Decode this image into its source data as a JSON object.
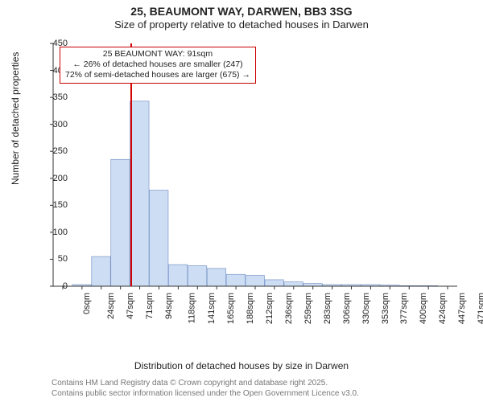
{
  "title": {
    "main": "25, BEAUMONT WAY, DARWEN, BB3 3SG",
    "sub": "Size of property relative to detached houses in Darwen"
  },
  "chart": {
    "type": "histogram",
    "y_label": "Number of detached properties",
    "x_label": "Distribution of detached houses by size in Darwen",
    "y_min": 0,
    "y_max": 450,
    "y_tick_step": 50,
    "x_tick_labels": [
      "0sqm",
      "24sqm",
      "47sqm",
      "71sqm",
      "94sqm",
      "118sqm",
      "141sqm",
      "165sqm",
      "188sqm",
      "212sqm",
      "236sqm",
      "259sqm",
      "283sqm",
      "306sqm",
      "330sqm",
      "353sqm",
      "377sqm",
      "400sqm",
      "424sqm",
      "447sqm",
      "471sqm"
    ],
    "bar_values": [
      0,
      3,
      55,
      235,
      343,
      178,
      40,
      38,
      33,
      22,
      20,
      12,
      8,
      5,
      3,
      3,
      3,
      2,
      1,
      1,
      0
    ],
    "bar_fill": "#cdddf3",
    "bar_stroke": "#7a97c9",
    "axis_color": "#333333",
    "grid_color": "#333333",
    "background": "#ffffff",
    "marker_line_color": "#d40000",
    "marker_x_value": 91,
    "x_value_max": 471
  },
  "annotation": {
    "line1": "25 BEAUMONT WAY: 91sqm",
    "line2": "← 26% of detached houses are smaller (247)",
    "line3": "72% of semi-detached houses are larger (675) →",
    "border_color": "#c90000"
  },
  "footer": {
    "line1": "Contains HM Land Registry data © Crown copyright and database right 2025.",
    "line2": "Contains public sector information licensed under the Open Government Licence v3.0."
  }
}
